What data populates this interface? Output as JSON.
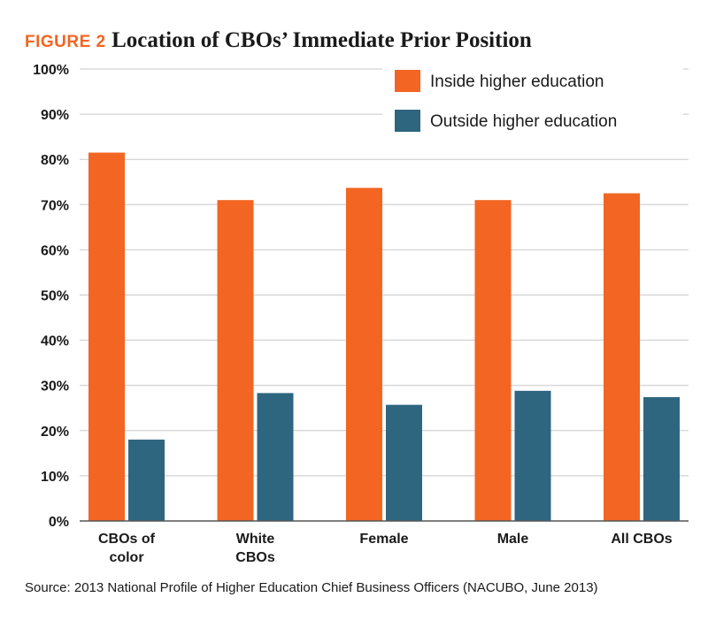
{
  "figure_label": "FIGURE 2",
  "source": "Source: 2013 National Profile of Higher Education Chief Business Officers (NACUBO, June 2013)",
  "colors": {
    "inside": "#f26522",
    "outside": "#2e6680",
    "grid": "#c8c8c8",
    "axis": "#555555"
  },
  "chart_data": {
    "type": "bar",
    "title": "Location of CBOs’ Immediate Prior Position",
    "xlabel": "",
    "ylabel": "",
    "categories": [
      [
        "CBOs of",
        "color"
      ],
      [
        "White",
        "CBOs"
      ],
      [
        "Female"
      ],
      [
        "Male"
      ],
      [
        "All CBOs"
      ]
    ],
    "series": [
      {
        "name": "Inside higher education",
        "values": [
          81.5,
          71,
          73.7,
          71,
          72.5
        ]
      },
      {
        "name": "Outside higher education",
        "values": [
          18,
          28.3,
          25.7,
          28.8,
          27.4
        ]
      }
    ],
    "ylim": [
      0,
      100
    ],
    "yticks": [
      "0%",
      "10%",
      "20%",
      "30%",
      "40%",
      "50%",
      "60%",
      "70%",
      "80%",
      "90%",
      "100%"
    ],
    "grid": true,
    "legend_position": "top-right"
  }
}
